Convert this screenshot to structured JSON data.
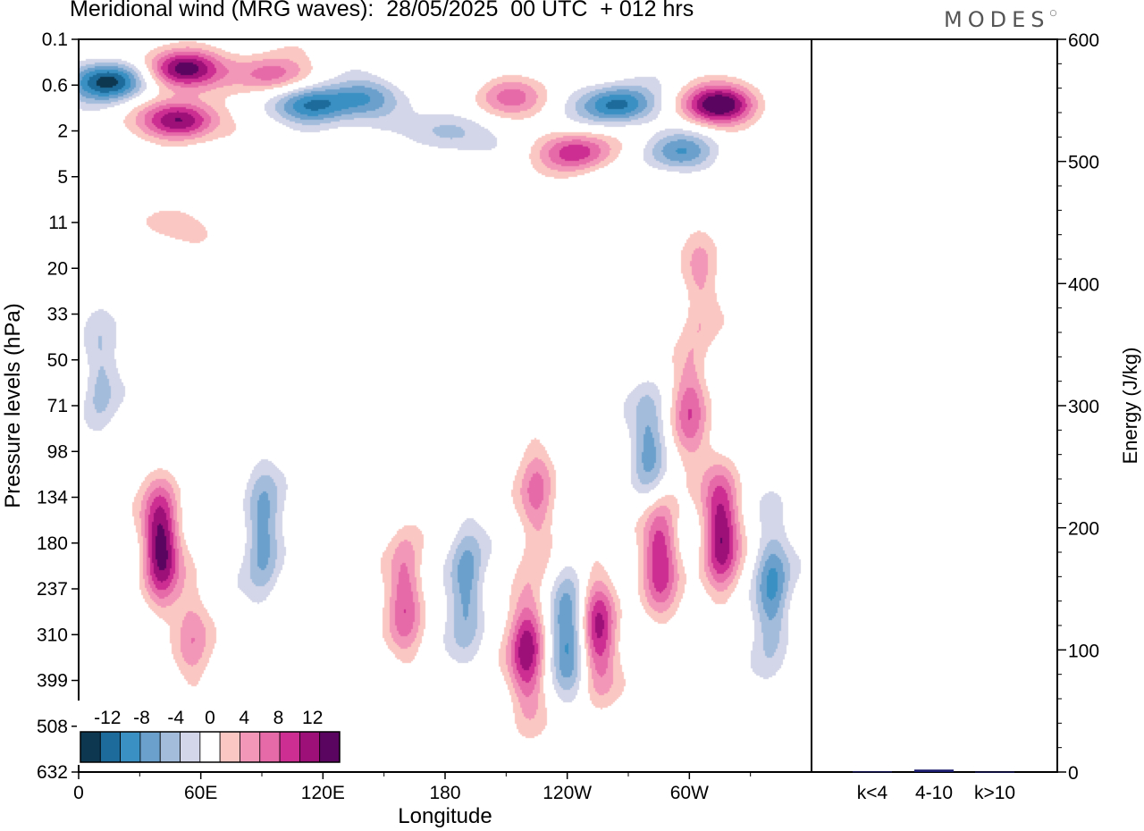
{
  "title": "Meridional wind (MRG waves):  28/05/2025  00 UTC  + 012 hrs",
  "logo": "MODES",
  "colors": {
    "levels": [
      "#0d3650",
      "#1c6b9a",
      "#3a8fc3",
      "#6ba0cc",
      "#a3bcdc",
      "#d3d5e8",
      "#ffffff",
      "#fbc7c2",
      "#f397b8",
      "#e66aa8",
      "#cc2e92",
      "#9c1078",
      "#5a0560"
    ]
  },
  "chart_data": [
    {
      "type": "heatmap",
      "title": "Meridional wind (MRG waves):  28/05/2025  00 UTC  + 012 hrs",
      "xlabel": "Longitude",
      "ylabel": "Pressure levels (hPa)",
      "x_ticks": [
        "0",
        "60E",
        "120E",
        "180",
        "120W",
        "60W"
      ],
      "y_ticks": [
        "0.1",
        "0.6",
        "2",
        "5",
        "11",
        "20",
        "33",
        "50",
        "71",
        "98",
        "134",
        "180",
        "237",
        "310",
        "399",
        "508",
        "632"
      ],
      "colorbar": {
        "labels": [
          "-12",
          "-8",
          "-4",
          "0",
          "4",
          "8",
          "12"
        ],
        "levels": [
          -12,
          -10,
          -8,
          -6,
          -4,
          -2,
          0,
          2,
          4,
          6,
          8,
          10,
          12,
          14
        ]
      },
      "features": [
        {
          "lon": 15,
          "lev": 0.5,
          "value": -13
        },
        {
          "lon": 50,
          "lev": 0.3,
          "value": 14
        },
        {
          "lon": 95,
          "lev": 0.4,
          "value": 8
        },
        {
          "lon": 115,
          "lev": 1.0,
          "value": -11
        },
        {
          "lon": 50,
          "lev": 1.5,
          "value": 13
        },
        {
          "lon": 140,
          "lev": 0.8,
          "value": -7
        },
        {
          "lon": 210,
          "lev": 0.8,
          "value": 6
        },
        {
          "lon": 265,
          "lev": 1.0,
          "value": -11
        },
        {
          "lon": 315,
          "lev": 1.0,
          "value": 14
        },
        {
          "lon": 180,
          "lev": 2.0,
          "value": -6
        },
        {
          "lon": 245,
          "lev": 3.0,
          "value": 9
        },
        {
          "lon": 295,
          "lev": 3.0,
          "value": -7
        },
        {
          "lon": 40,
          "lev": 11,
          "value": 4
        },
        {
          "lon": 305,
          "lev": 24,
          "value": 4
        },
        {
          "lon": 10,
          "lev": 60,
          "value": -5
        },
        {
          "lon": 40,
          "lev": 180,
          "value": 13
        },
        {
          "lon": 90,
          "lev": 170,
          "value": -8
        },
        {
          "lon": 55,
          "lev": 330,
          "value": 5
        },
        {
          "lon": 160,
          "lev": 240,
          "value": 8
        },
        {
          "lon": 190,
          "lev": 230,
          "value": -8
        },
        {
          "lon": 220,
          "lev": 330,
          "value": 11
        },
        {
          "lon": 240,
          "lev": 300,
          "value": -9
        },
        {
          "lon": 255,
          "lev": 300,
          "value": 10
        },
        {
          "lon": 285,
          "lev": 190,
          "value": 10
        },
        {
          "lon": 315,
          "lev": 170,
          "value": 12
        },
        {
          "lon": 280,
          "lev": 95,
          "value": -7
        },
        {
          "lon": 340,
          "lev": 240,
          "value": -9
        },
        {
          "lon": 300,
          "lev": 70,
          "value": 7
        },
        {
          "lon": 225,
          "lev": 125,
          "value": 6
        }
      ]
    },
    {
      "type": "bar",
      "categories": [
        "k<4",
        "4-10",
        "k>10"
      ],
      "values": [
        0.5,
        2,
        0.3
      ],
      "ylabel": "Energy (J/kg)",
      "ylim": [
        0,
        600
      ],
      "y_ticks": [
        "0",
        "100",
        "200",
        "300",
        "400",
        "500",
        "600"
      ]
    }
  ]
}
